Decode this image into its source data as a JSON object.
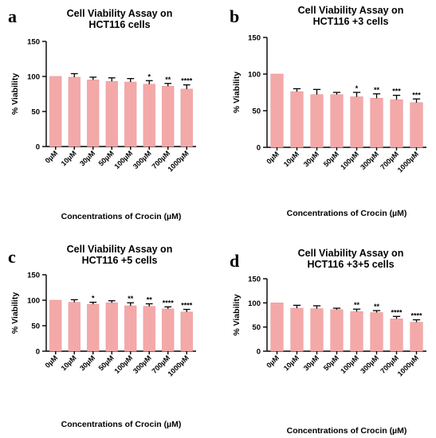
{
  "chart_data": [
    {
      "type": "bar",
      "panel": "a",
      "title": [
        "Cell Viability Assay on",
        "HCT116 cells"
      ],
      "xlabel": "Concentrations of Crocin (µM)",
      "ylabel": "% Viability",
      "ylim": [
        0,
        150
      ],
      "yticks": [
        "0",
        "50",
        "100",
        "150"
      ],
      "categories": [
        "0µM",
        "10µM",
        "30µM",
        "50µM",
        "100µM",
        "300µM",
        "700µM",
        "1000µM"
      ],
      "values": [
        100,
        99,
        95,
        93,
        92,
        89,
        86,
        82
      ],
      "errors": [
        0,
        5,
        4,
        5,
        5,
        5,
        4,
        6
      ],
      "significance": [
        "",
        "",
        "",
        "",
        "",
        "*",
        "**",
        "****"
      ]
    },
    {
      "type": "bar",
      "panel": "b",
      "title": [
        "Cell Viability Assay on",
        "HCT116 +3 cells"
      ],
      "xlabel": "Concentrations of Crocin (µM)",
      "ylabel": "% Viability",
      "ylim": [
        0,
        150
      ],
      "yticks": [
        "0",
        "50",
        "100",
        "150"
      ],
      "categories": [
        "0µM",
        "10µM",
        "30µM",
        "50µM",
        "100µM",
        "300µM",
        "700µM",
        "1000µM"
      ],
      "values": [
        100,
        76,
        72,
        72,
        69,
        67,
        65,
        61
      ],
      "errors": [
        0,
        4,
        7,
        3,
        6,
        6,
        6,
        5
      ],
      "significance": [
        "",
        "",
        "",
        "",
        "*",
        "**",
        "***",
        "***"
      ]
    },
    {
      "type": "bar",
      "panel": "c",
      "title": [
        "Cell Viability Assay on",
        "HCT116 +5 cells"
      ],
      "xlabel": "Concentrations of Crocin (µM)",
      "ylabel": "% Viability",
      "ylim": [
        0,
        150
      ],
      "yticks": [
        "0",
        "50",
        "100",
        "150"
      ],
      "categories": [
        "0µM",
        "10µM",
        "30µM",
        "50µM",
        "100µM",
        "300µM",
        "700µM",
        "1000µM"
      ],
      "values": [
        100,
        96,
        92,
        95,
        89,
        88,
        83,
        77
      ],
      "errors": [
        0,
        5,
        4,
        4,
        6,
        5,
        4,
        5
      ],
      "significance": [
        "",
        "",
        "*",
        "",
        "**",
        "**",
        "****",
        "****"
      ]
    },
    {
      "type": "bar",
      "panel": "d",
      "title": [
        "Cell Viability Assay on",
        "HCT116 +3+5 cells"
      ],
      "xlabel": "Concentrations of Crocin (µM)",
      "ylabel": "% Viability",
      "ylim": [
        0,
        150
      ],
      "yticks": [
        "0",
        "50",
        "100",
        "150"
      ],
      "categories": [
        "0µM",
        "10µM",
        "30µM",
        "50µM",
        "100µM",
        "300µM",
        "700µM",
        "1000µM"
      ],
      "values": [
        100,
        89,
        88,
        86,
        82,
        80,
        67,
        60
      ],
      "errors": [
        0,
        6,
        6,
        3,
        5,
        4,
        5,
        5
      ],
      "significance": [
        "",
        "",
        "",
        "",
        "**",
        "**",
        "****",
        "****"
      ]
    }
  ],
  "colors": {
    "bar": "#f4a9a9",
    "bar_edge": "#e79696",
    "axis": "#000000"
  }
}
